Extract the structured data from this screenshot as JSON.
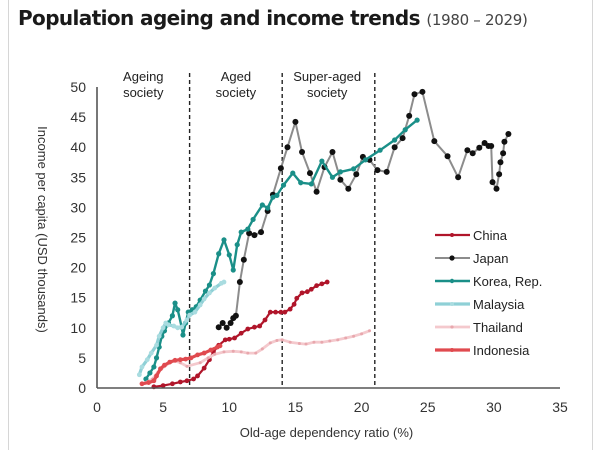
{
  "title": {
    "main": "Population ageing and income trends",
    "sub": "(1980 – 2029)"
  },
  "chart_data": {
    "type": "line",
    "title": "Population ageing and income trends (1980 – 2029)",
    "xlabel": "Old-age dependency ratio (%)",
    "ylabel": "Income per capita (USD thousands)",
    "xlim": [
      0,
      35
    ],
    "ylim": [
      0,
      50
    ],
    "xticks": [
      0,
      5,
      10,
      15,
      20,
      25,
      30,
      35
    ],
    "yticks": [
      0,
      5,
      10,
      15,
      20,
      25,
      30,
      35,
      40,
      45,
      50
    ],
    "grid": false,
    "legend_position": "right",
    "thresholds": [
      7,
      14,
      21
    ],
    "zones": [
      {
        "lines": [
          "Ageing",
          "society"
        ],
        "x": 3.5
      },
      {
        "lines": [
          "Aged",
          "society"
        ],
        "x": 10.5
      },
      {
        "lines": [
          "Super-aged",
          "society"
        ],
        "x": 17.4
      }
    ],
    "series": [
      {
        "name": "China",
        "color": "#b0152a",
        "width": 2.2,
        "marker": 2.4,
        "points": [
          [
            4.3,
            0.2
          ],
          [
            5.0,
            0.4
          ],
          [
            5.7,
            0.7
          ],
          [
            6.3,
            1.0
          ],
          [
            6.8,
            1.2
          ],
          [
            7.3,
            1.5
          ],
          [
            7.6,
            2.0
          ],
          [
            8.1,
            3.3
          ],
          [
            8.5,
            4.7
          ],
          [
            8.8,
            6.0
          ],
          [
            9.2,
            7.1
          ],
          [
            9.7,
            8.0
          ],
          [
            10.0,
            8.1
          ],
          [
            10.4,
            8.3
          ],
          [
            10.9,
            9.1
          ],
          [
            11.4,
            9.8
          ],
          [
            11.9,
            10.1
          ],
          [
            12.3,
            10.3
          ],
          [
            12.7,
            11.3
          ],
          [
            13.1,
            12.6
          ],
          [
            13.5,
            12.6
          ],
          [
            13.9,
            12.6
          ],
          [
            14.2,
            12.6
          ],
          [
            14.6,
            13.1
          ],
          [
            14.9,
            13.9
          ],
          [
            15.1,
            14.9
          ],
          [
            15.5,
            15.8
          ],
          [
            15.9,
            16.0
          ],
          [
            16.2,
            16.4
          ],
          [
            16.6,
            17.0
          ],
          [
            17.0,
            17.3
          ],
          [
            17.4,
            17.6
          ]
        ]
      },
      {
        "name": "Japan",
        "color": "#8c8c8c",
        "markerColor": "#111111",
        "width": 2,
        "marker": 3,
        "points": [
          [
            9.2,
            10.1
          ],
          [
            9.5,
            10.8
          ],
          [
            9.8,
            10.0
          ],
          [
            10.1,
            10.8
          ],
          [
            10.3,
            11.6
          ],
          [
            10.5,
            12.0
          ],
          [
            10.8,
            17.6
          ],
          [
            11.1,
            21.3
          ],
          [
            11.5,
            25.7
          ],
          [
            11.9,
            25.4
          ],
          [
            12.4,
            25.9
          ],
          [
            12.9,
            29.4
          ],
          [
            13.3,
            32.1
          ],
          [
            13.9,
            36.5
          ],
          [
            14.4,
            40.0
          ],
          [
            15.0,
            44.2
          ],
          [
            15.5,
            39.2
          ],
          [
            16.1,
            35.7
          ],
          [
            16.6,
            32.6
          ],
          [
            17.2,
            36.7
          ],
          [
            17.8,
            39.2
          ],
          [
            18.4,
            34.6
          ],
          [
            19.0,
            33.1
          ],
          [
            19.6,
            35.5
          ],
          [
            20.1,
            38.4
          ],
          [
            20.6,
            37.9
          ],
          [
            21.2,
            36.2
          ],
          [
            21.9,
            35.9
          ],
          [
            22.5,
            40.0
          ],
          [
            23.1,
            41.5
          ],
          [
            23.6,
            45.2
          ],
          [
            24.0,
            48.8
          ],
          [
            24.6,
            49.2
          ],
          [
            25.5,
            41.0
          ],
          [
            26.5,
            38.5
          ],
          [
            27.3,
            35.0
          ],
          [
            28.0,
            39.5
          ],
          [
            28.4,
            39.0
          ],
          [
            28.9,
            39.9
          ],
          [
            29.3,
            40.7
          ],
          [
            29.6,
            40.2
          ],
          [
            29.8,
            40.2
          ],
          [
            29.9,
            34.2
          ],
          [
            30.2,
            33.1
          ],
          [
            30.4,
            35.5
          ],
          [
            30.5,
            37.5
          ],
          [
            30.7,
            39.0
          ],
          [
            30.8,
            40.9
          ],
          [
            31.1,
            42.2
          ]
        ]
      },
      {
        "name": "Korea, Rep.",
        "color": "#1a8f88",
        "width": 2.4,
        "marker": 2.6,
        "points": [
          [
            3.7,
            1.5
          ],
          [
            4.0,
            2.5
          ],
          [
            4.3,
            3.5
          ],
          [
            4.5,
            5.0
          ],
          [
            4.7,
            6.8
          ],
          [
            4.9,
            8.6
          ],
          [
            5.1,
            9.5
          ],
          [
            5.4,
            10.8
          ],
          [
            5.7,
            12.0
          ],
          [
            5.9,
            14.1
          ],
          [
            6.1,
            13.0
          ],
          [
            6.4,
            10.1
          ],
          [
            6.5,
            8.8
          ],
          [
            6.7,
            10.8
          ],
          [
            6.9,
            12.6
          ],
          [
            7.2,
            13.0
          ],
          [
            7.5,
            13.5
          ],
          [
            7.8,
            14.6
          ],
          [
            8.2,
            16.1
          ],
          [
            8.5,
            17.1
          ],
          [
            8.8,
            19.0
          ],
          [
            9.2,
            22.3
          ],
          [
            9.6,
            24.6
          ],
          [
            10.0,
            22.1
          ],
          [
            10.3,
            19.6
          ],
          [
            10.6,
            23.8
          ],
          [
            10.9,
            25.9
          ],
          [
            11.4,
            26.4
          ],
          [
            11.8,
            28.0
          ],
          [
            12.5,
            30.4
          ],
          [
            12.9,
            29.9
          ],
          [
            13.3,
            31.7
          ],
          [
            13.6,
            32.0
          ],
          [
            14.1,
            33.7
          ],
          [
            14.8,
            35.7
          ],
          [
            15.4,
            34.1
          ],
          [
            16.2,
            33.9
          ],
          [
            17.0,
            37.7
          ],
          [
            17.8,
            35.0
          ],
          [
            18.4,
            35.9
          ],
          [
            19.4,
            36.4
          ],
          [
            20.3,
            37.9
          ],
          [
            21.4,
            39.5
          ],
          [
            22.5,
            41.2
          ],
          [
            23.3,
            42.9
          ],
          [
            24.2,
            44.5
          ]
        ]
      },
      {
        "name": "Malaysia",
        "color": "#8fd0d6",
        "markerColor": "#a9dce0",
        "width": 3.2,
        "marker": 2.4,
        "points": [
          [
            3.2,
            2.2
          ],
          [
            3.4,
            3.5
          ],
          [
            3.8,
            4.7
          ],
          [
            4.1,
            5.8
          ],
          [
            4.5,
            7.1
          ],
          [
            4.7,
            8.6
          ],
          [
            5.0,
            10.0
          ],
          [
            5.2,
            10.8
          ],
          [
            5.4,
            10.5
          ],
          [
            5.8,
            10.3
          ],
          [
            6.1,
            10.0
          ],
          [
            6.4,
            10.1
          ],
          [
            6.8,
            11.3
          ],
          [
            7.0,
            12.1
          ],
          [
            7.4,
            12.6
          ],
          [
            7.8,
            13.8
          ],
          [
            8.1,
            14.8
          ],
          [
            8.5,
            15.8
          ],
          [
            8.9,
            16.6
          ],
          [
            9.4,
            17.4
          ],
          [
            9.6,
            17.6
          ]
        ]
      },
      {
        "name": "Thailand",
        "color": "#f4c9cd",
        "markerColor": "#e8a7ad",
        "width": 2.8,
        "marker": 1.5,
        "points": [
          [
            3.6,
            0.8
          ],
          [
            4.2,
            1.5
          ],
          [
            4.6,
            2.6
          ],
          [
            5.1,
            3.6
          ],
          [
            5.5,
            4.2
          ],
          [
            5.9,
            4.5
          ],
          [
            6.3,
            4.2
          ],
          [
            6.8,
            3.6
          ],
          [
            7.8,
            4.2
          ],
          [
            8.4,
            5.0
          ],
          [
            8.9,
            5.6
          ],
          [
            9.6,
            6.0
          ],
          [
            10.3,
            6.1
          ],
          [
            10.9,
            6.0
          ],
          [
            11.4,
            5.8
          ],
          [
            12.0,
            5.8
          ],
          [
            12.5,
            6.5
          ],
          [
            13.1,
            7.5
          ],
          [
            13.6,
            7.9
          ],
          [
            14.0,
            8.0
          ],
          [
            14.6,
            7.6
          ],
          [
            15.3,
            7.4
          ],
          [
            15.8,
            7.3
          ],
          [
            16.4,
            7.6
          ],
          [
            17.0,
            7.6
          ],
          [
            17.6,
            7.8
          ],
          [
            18.2,
            8.0
          ],
          [
            18.8,
            8.3
          ],
          [
            19.4,
            8.6
          ],
          [
            20.0,
            9.0
          ],
          [
            20.6,
            9.5
          ]
        ]
      },
      {
        "name": "Indonesia",
        "color": "#e04a4f",
        "width": 3.2,
        "marker": 2.4,
        "points": [
          [
            3.4,
            0.7
          ],
          [
            3.9,
            0.9
          ],
          [
            4.3,
            1.2
          ],
          [
            4.5,
            2.0
          ],
          [
            4.8,
            3.2
          ],
          [
            5.1,
            3.8
          ],
          [
            5.5,
            4.3
          ],
          [
            5.9,
            4.6
          ],
          [
            6.3,
            4.7
          ],
          [
            6.7,
            4.8
          ],
          [
            7.1,
            5.0
          ],
          [
            7.6,
            5.5
          ],
          [
            8.1,
            5.8
          ],
          [
            8.6,
            6.3
          ],
          [
            9.1,
            6.8
          ],
          [
            9.3,
            7.0
          ]
        ]
      }
    ]
  }
}
